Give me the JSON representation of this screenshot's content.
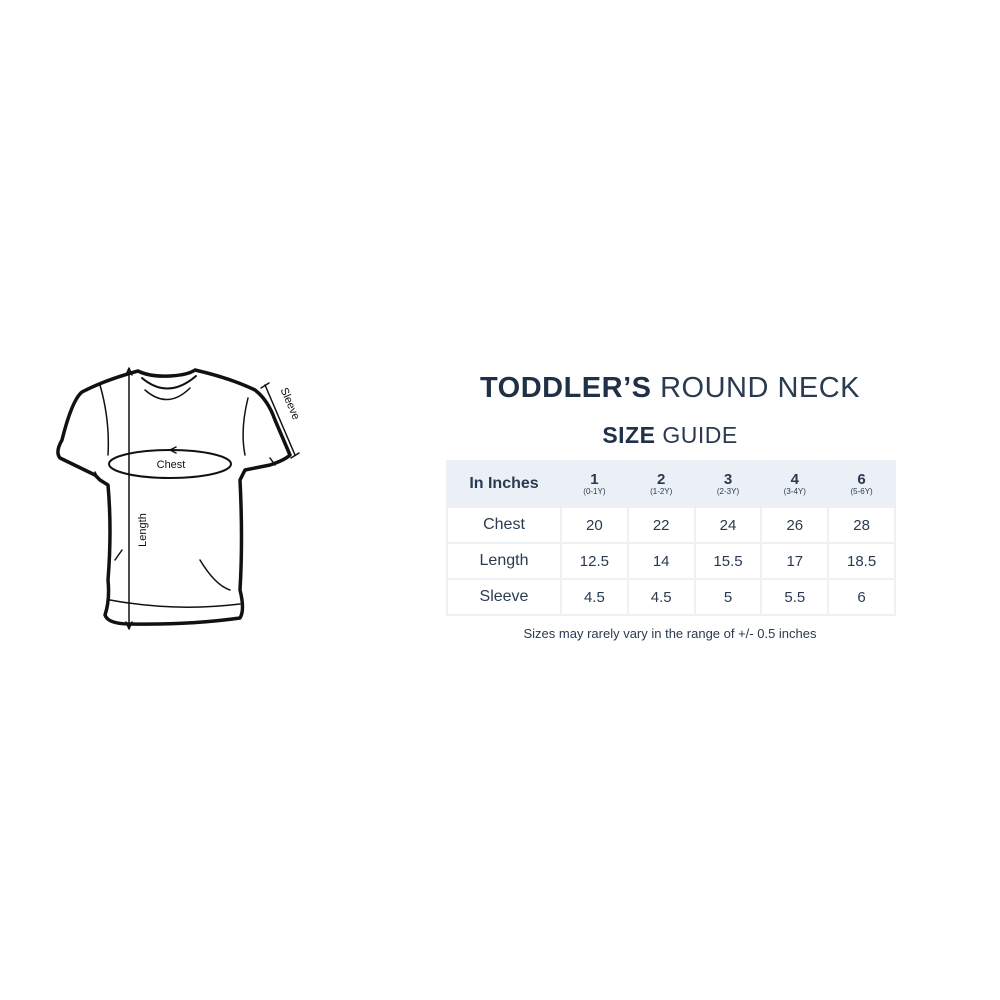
{
  "title": {
    "bold": "TODDLER’S",
    "light": "ROUND NECK"
  },
  "subtitle": {
    "bold": "SIZE",
    "light": "GUIDE"
  },
  "diagram_labels": {
    "chest": "Chest",
    "length": "Length",
    "sleeve": "Sleeve"
  },
  "table": {
    "corner": "In Inches",
    "columns": [
      {
        "size": "1",
        "age": "(0-1Y)"
      },
      {
        "size": "2",
        "age": "(1-2Y)"
      },
      {
        "size": "3",
        "age": "(2-3Y)"
      },
      {
        "size": "4",
        "age": "(3-4Y)"
      },
      {
        "size": "6",
        "age": "(5-6Y)"
      }
    ],
    "rows": [
      {
        "label": "Chest",
        "values": [
          "20",
          "22",
          "24",
          "26",
          "28"
        ]
      },
      {
        "label": "Length",
        "values": [
          "12.5",
          "14",
          "15.5",
          "17",
          "18.5"
        ]
      },
      {
        "label": "Sleeve",
        "values": [
          "4.5",
          "4.5",
          "5",
          "5.5",
          "6"
        ]
      }
    ]
  },
  "note": "Sizes may rarely vary in the range of +/- 0.5 inches"
}
